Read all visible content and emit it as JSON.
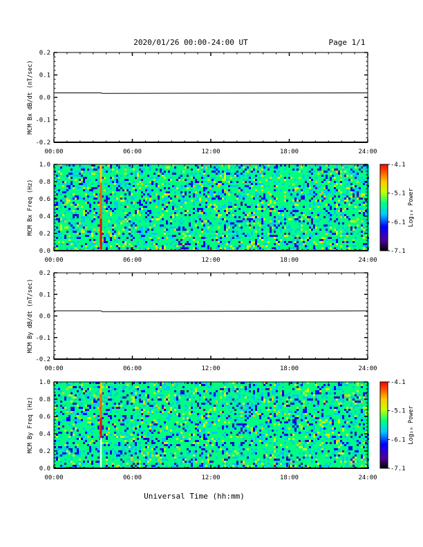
{
  "page": {
    "title": "2020/01/26  00:00-24:00 UT",
    "page_label": "Page 1/1",
    "xlabel": "Universal Time (hh:mm)"
  },
  "colorbar": {
    "label": "Log₁₀ Power",
    "ticks": [
      "-4.1",
      "-5.1",
      "-6.1",
      "-7.1"
    ],
    "range": [
      -7.1,
      -4.1
    ],
    "colors": [
      "#000000",
      "#5000a0",
      "#0000ff",
      "#00c8ff",
      "#00ff80",
      "#c8ff00",
      "#ffc800",
      "#ff6000",
      "#ff0000"
    ]
  },
  "chart_data": [
    {
      "type": "line",
      "ylabel": "MCM Bx dB/dt (nT/sec)",
      "xlim": [
        0,
        24
      ],
      "ylim": [
        -0.2,
        0.2
      ],
      "x_ticks": [
        "00:00",
        "06:00",
        "12:00",
        "18:00",
        "24:00"
      ],
      "y_ticks": [
        "0.2",
        "0.1",
        "0.0",
        "-0.1",
        "-0.2"
      ],
      "series": [
        {
          "x": [
            0,
            3.6,
            3.7,
            24
          ],
          "y": [
            0.02,
            0.02,
            0.018,
            0.02
          ]
        }
      ]
    },
    {
      "type": "heatmap",
      "ylabel": "MCM Bx Freq (Hz)",
      "xlim": [
        0,
        24
      ],
      "ylim": [
        0,
        1
      ],
      "x_ticks": [
        "00:00",
        "06:00",
        "12:00",
        "18:00",
        "24:00"
      ],
      "y_ticks": [
        "1.0",
        "0.8",
        "0.6",
        "0.4",
        "0.2",
        "0.0"
      ],
      "background_log_power": -5.6,
      "events": [
        {
          "time": 3.6,
          "fmin": 0.02,
          "fmax": 1.0,
          "log_power": -4.3
        }
      ]
    },
    {
      "type": "line",
      "ylabel": "MCM By dB/dt (nT/sec)",
      "xlim": [
        0,
        24
      ],
      "ylim": [
        -0.2,
        0.2
      ],
      "x_ticks": [
        "00:00",
        "06:00",
        "12:00",
        "18:00",
        "24:00"
      ],
      "y_ticks": [
        "0.2",
        "0.1",
        "0.0",
        "-0.1",
        "-0.2"
      ],
      "series": [
        {
          "x": [
            0,
            3.6,
            3.7,
            24
          ],
          "y": [
            0.024,
            0.024,
            0.02,
            0.024
          ]
        }
      ]
    },
    {
      "type": "heatmap",
      "ylabel": "MCM By Freq (Hz)",
      "xlim": [
        0,
        24
      ],
      "ylim": [
        0,
        1
      ],
      "x_ticks": [
        "00:00",
        "06:00",
        "12:00",
        "18:00",
        "24:00"
      ],
      "y_ticks": [
        "1.0",
        "0.8",
        "0.6",
        "0.4",
        "0.2",
        "0.0"
      ],
      "background_log_power": -5.6,
      "events": [
        {
          "time": 3.6,
          "fmin": 0.35,
          "fmax": 1.0,
          "log_power": -4.3
        }
      ]
    }
  ]
}
